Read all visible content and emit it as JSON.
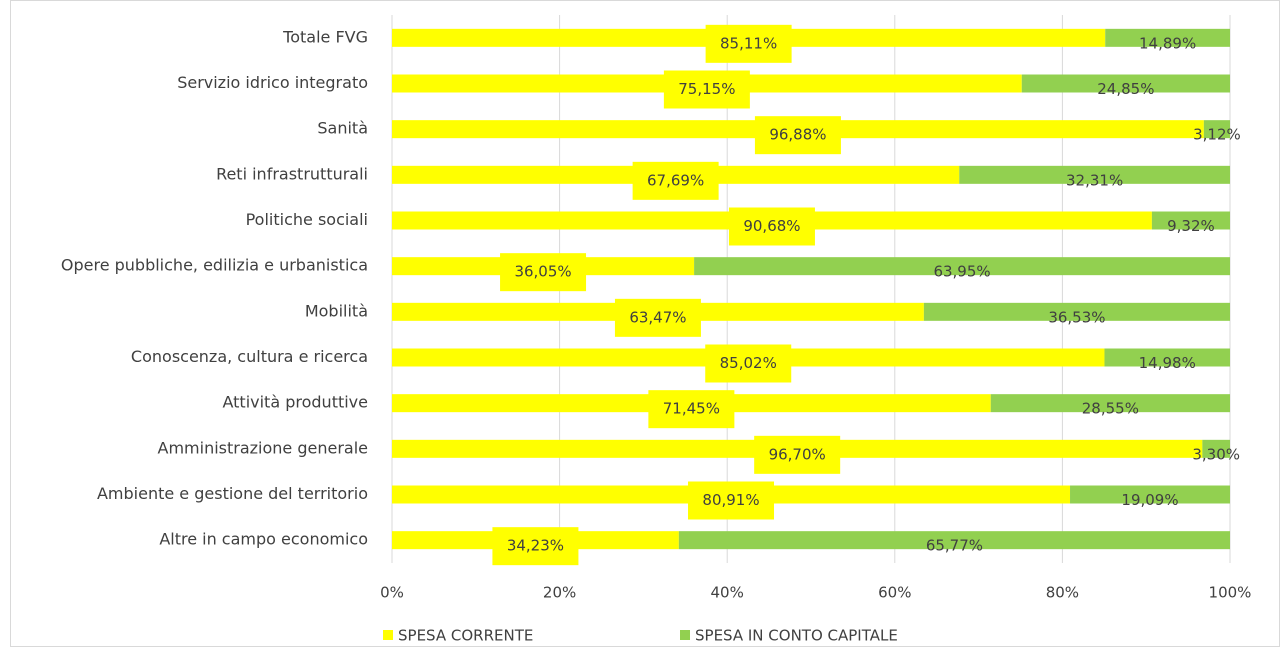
{
  "chart_data": {
    "type": "stacked_barh",
    "categories": [
      "Totale FVG",
      "Servizio idrico integrato",
      "Sanità",
      "Reti infrastrutturali",
      "Politiche sociali",
      "Opere pubbliche, edilizia e urbanistica",
      "Mobilità",
      "Conoscenza, cultura e ricerca",
      "Attività produttive",
      "Amministrazione generale",
      "Ambiente e gestione del territorio",
      "Altre in campo economico"
    ],
    "series": [
      {
        "name": "SPESA CORRENTE",
        "color": "#ffff00",
        "values": [
          85.11,
          75.15,
          96.88,
          67.69,
          90.68,
          36.05,
          63.47,
          85.02,
          71.45,
          96.7,
          80.91,
          34.23
        ],
        "value_labels": [
          "85,11%",
          "75,15%",
          "96,88%",
          "67,69%",
          "90,68%",
          "36,05%",
          "63,47%",
          "85,02%",
          "71,45%",
          "96,70%",
          "80,91%",
          "34,23%"
        ]
      },
      {
        "name": "SPESA IN CONTO CAPITALE",
        "color": "#92d050",
        "values": [
          14.89,
          24.85,
          3.12,
          32.31,
          9.32,
          63.95,
          36.53,
          14.98,
          28.55,
          3.3,
          19.09,
          65.77
        ],
        "value_labels": [
          "14,89%",
          "24,85%",
          "3,12%",
          "32,31%",
          "9,32%",
          "63,95%",
          "36,53%",
          "14,98%",
          "28,55%",
          "3,30%",
          "19,09%",
          "65,77%"
        ]
      }
    ],
    "xlim": [
      0,
      100
    ],
    "xticks": [
      {
        "value": 0,
        "label": "0%"
      },
      {
        "value": 20,
        "label": "20%"
      },
      {
        "value": 40,
        "label": "40%"
      },
      {
        "value": 60,
        "label": "60%"
      },
      {
        "value": 80,
        "label": "80%"
      },
      {
        "value": 100,
        "label": "100%"
      }
    ],
    "grid": true,
    "legend": "bottom"
  }
}
